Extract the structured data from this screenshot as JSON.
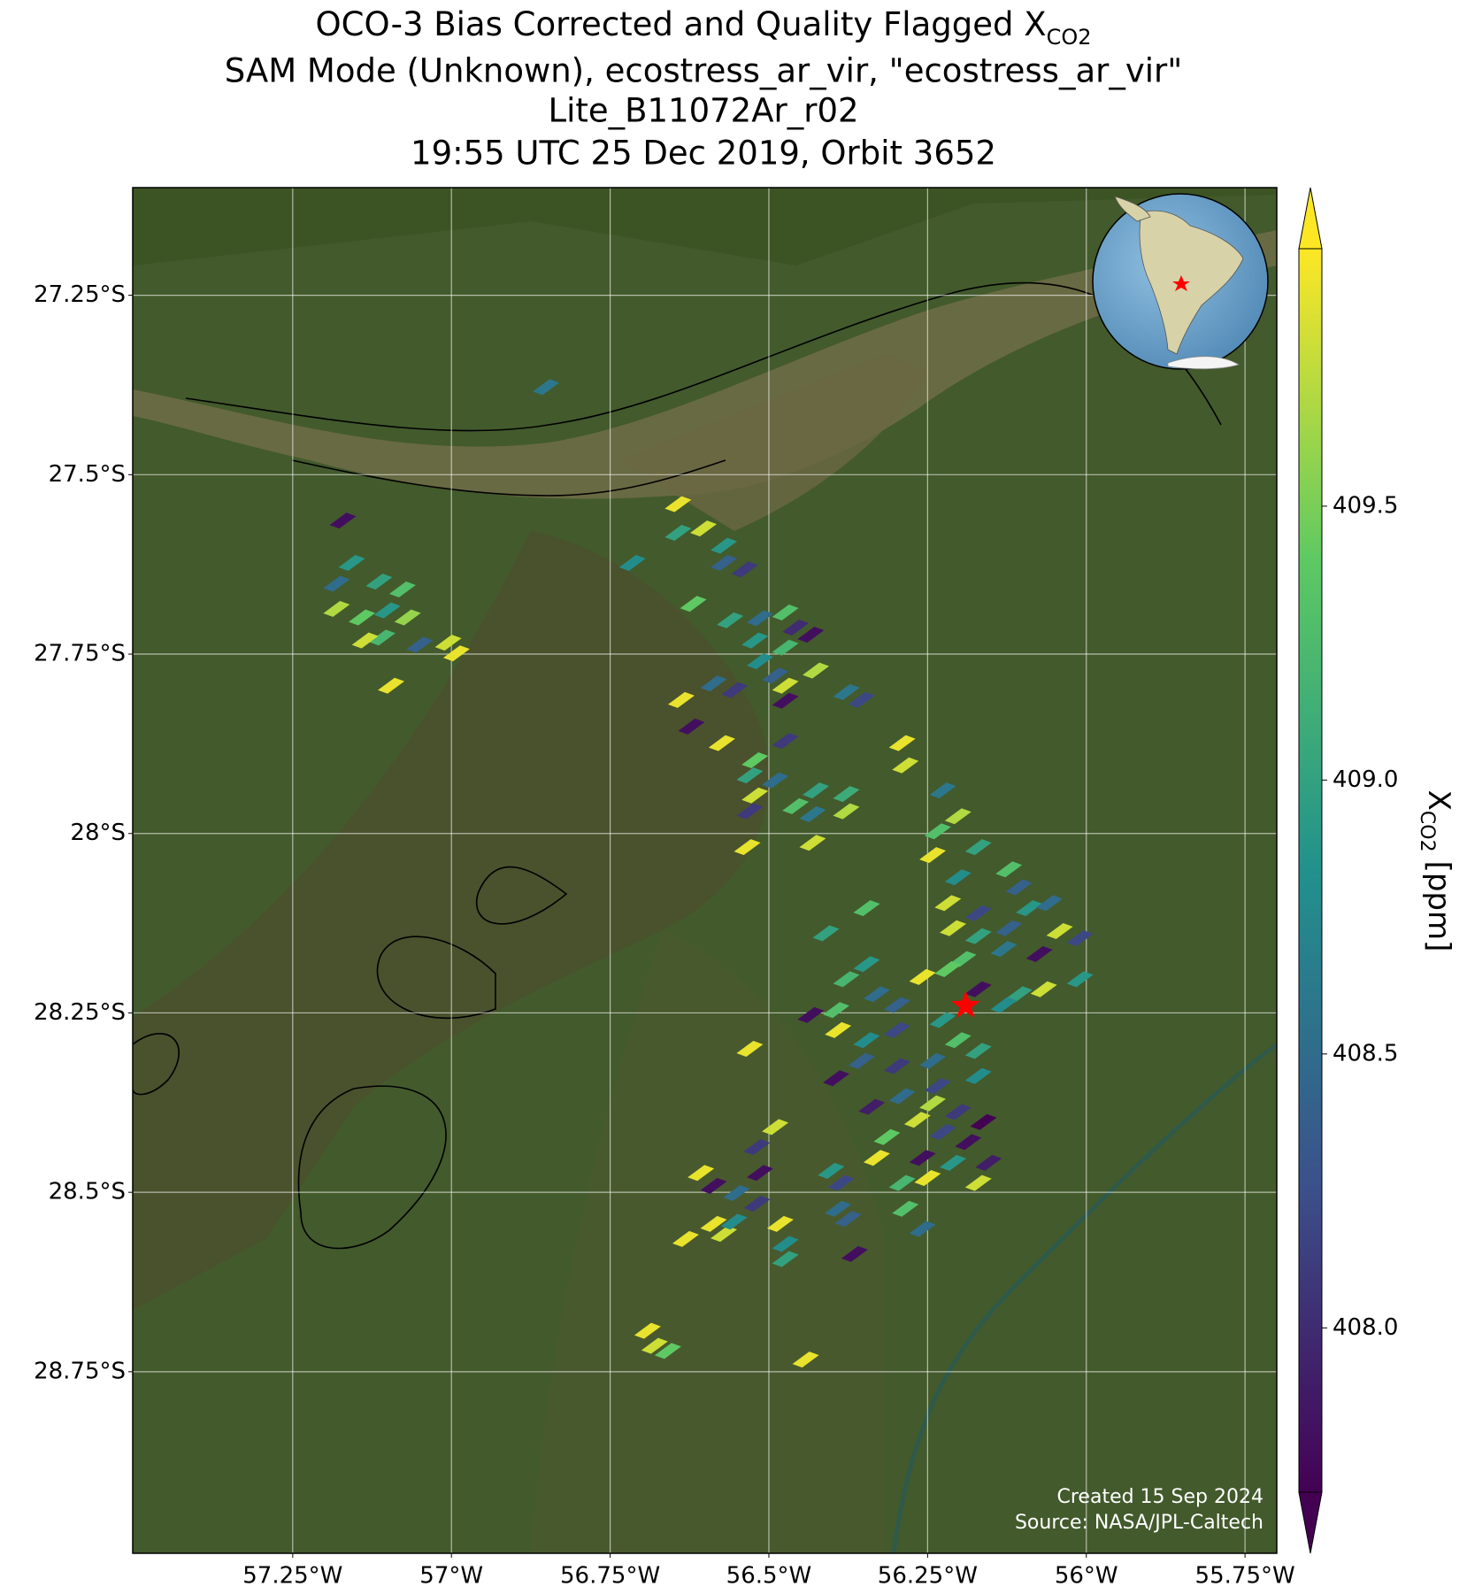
{
  "chart_data": {
    "type": "map",
    "title_lines": [
      "SAM Mode (Unknown), ecostress_ar_vir, \"ecostress_ar_vir\"",
      "Lite_B11072Ar_r02",
      "19:55 UTC 25 Dec 2019, Orbit 3652"
    ],
    "title_prefix": "OCO-3 Bias Corrected and Quality Flagged X",
    "title_subscript": "CO2",
    "colorbar_label": {
      "symbol": "X",
      "subscript": "CO2",
      "unit": "[ppm]"
    },
    "footer": [
      "Created 15 Sep 2024",
      "Source: NASA/JPL-Caltech"
    ],
    "xlim": [
      -57.502,
      -55.7
    ],
    "ylim": [
      -29.003,
      -27.1
    ],
    "xticks": [
      {
        "value": -57.25,
        "label": "57.25°W"
      },
      {
        "value": -57,
        "label": "57°W"
      },
      {
        "value": -56.75,
        "label": "56.75°W"
      },
      {
        "value": -56.5,
        "label": "56.5°W"
      },
      {
        "value": -56.25,
        "label": "56.25°W"
      },
      {
        "value": -56,
        "label": "56°W"
      },
      {
        "value": -55.75,
        "label": "55.75°W"
      }
    ],
    "yticks": [
      {
        "value": -27.25,
        "label": "27.25°S"
      },
      {
        "value": -27.5,
        "label": "27.5°S"
      },
      {
        "value": -27.75,
        "label": "27.75°S"
      },
      {
        "value": -28,
        "label": "28°S"
      },
      {
        "value": -28.25,
        "label": "28.25°S"
      },
      {
        "value": -28.5,
        "label": "28.5°S"
      },
      {
        "value": -28.75,
        "label": "28.75°S"
      }
    ],
    "grid": true,
    "colormap": "viridis",
    "clim": [
      407.7,
      409.97
    ],
    "cticks": [
      {
        "value": 408,
        "label": "408.0"
      },
      408.5,
      {
        "value": 409,
        "label": "409.0"
      },
      409.5
    ],
    "target": {
      "lon": -56.19,
      "lat": -28.24,
      "color": "#ff0000"
    },
    "soundings": {
      "lon": [
        -56.851,
        -57.171,
        -56.643,
        -56.643,
        -56.603,
        -56.571,
        -56.715,
        -56.571,
        -56.538,
        -57.157,
        -57.114,
        -57.181,
        -57.077,
        -57.181,
        -57.141,
        -57.101,
        -57.069,
        -57.109,
        -57.136,
        -57.05,
        -57.005,
        -56.992,
        -57.095,
        -56.619,
        -56.561,
        -56.514,
        -56.474,
        -56.458,
        -56.522,
        -56.434,
        -56.474,
        -56.514,
        -56.49,
        -56.426,
        -56.474,
        -56.587,
        -56.554,
        -56.638,
        -56.474,
        -56.378,
        -56.354,
        -56.622,
        -56.574,
        -56.522,
        -56.474,
        -56.53,
        -56.49,
        -56.522,
        -56.426,
        -56.378,
        -56.458,
        -56.378,
        -56.431,
        -56.53,
        -56.534,
        -56.431,
        -56.29,
        -56.285,
        -56.226,
        -56.202,
        -56.234,
        -56.242,
        -56.17,
        -56.202,
        -56.122,
        -56.106,
        -56.218,
        -56.17,
        -56.09,
        -56.058,
        -56.21,
        -56.17,
        -56.122,
        -56.042,
        -56.01,
        -56.194,
        -56.13,
        -56.074,
        -56.218,
        -56.01,
        -56.067,
        -56.106,
        -56.17,
        -56.13,
        -56.346,
        -56.41,
        -56.346,
        -56.378,
        -56.33,
        -56.258,
        -56.298,
        -56.394,
        -56.434,
        -56.391,
        -56.346,
        -56.298,
        -56.226,
        -56.202,
        -56.242,
        -56.17,
        -56.354,
        -56.298,
        -56.234,
        -56.17,
        -56.53,
        -56.394,
        -56.338,
        -56.29,
        -56.242,
        -56.202,
        -56.162,
        -56.266,
        -56.314,
        -56.226,
        -56.186,
        -56.49,
        -56.519,
        -56.33,
        -56.258,
        -56.21,
        -56.154,
        -56.29,
        -56.25,
        -56.17,
        -56.607,
        -56.587,
        -56.514,
        -56.402,
        -56.386,
        -56.551,
        -56.519,
        -56.391,
        -56.285,
        -56.587,
        -56.571,
        -56.482,
        -56.555,
        -56.375,
        -56.258,
        -56.631,
        -56.474,
        -56.474,
        -56.365,
        -56.691,
        -56.68,
        -56.659,
        -56.442
      ],
      "lat": [
        -27.378,
        -27.564,
        -27.541,
        -27.581,
        -27.575,
        -27.599,
        -27.623,
        -27.623,
        -27.632,
        -27.623,
        -27.649,
        -27.652,
        -27.66,
        -27.687,
        -27.699,
        -27.689,
        -27.699,
        -27.727,
        -27.731,
        -27.737,
        -27.734,
        -27.749,
        -27.794,
        -27.68,
        -27.703,
        -27.7,
        -27.692,
        -27.713,
        -27.731,
        -27.723,
        -27.741,
        -27.76,
        -27.78,
        -27.773,
        -27.794,
        -27.791,
        -27.8,
        -27.814,
        -27.815,
        -27.803,
        -27.814,
        -27.851,
        -27.874,
        -27.898,
        -27.871,
        -27.919,
        -27.926,
        -27.947,
        -27.94,
        -27.945,
        -27.962,
        -27.969,
        -27.973,
        -27.969,
        -28.019,
        -28.013,
        -27.874,
        -27.905,
        -27.94,
        -27.976,
        -27.997,
        -28.03,
        -28.019,
        -28.061,
        -28.05,
        -28.075,
        -28.097,
        -28.111,
        -28.104,
        -28.097,
        -28.132,
        -28.143,
        -28.132,
        -28.136,
        -28.146,
        -28.175,
        -28.161,
        -28.168,
        -28.189,
        -28.203,
        -28.217,
        -28.224,
        -28.217,
        -28.239,
        -28.104,
        -28.139,
        -28.182,
        -28.203,
        -28.224,
        -28.2,
        -28.239,
        -28.246,
        -28.253,
        -28.274,
        -28.288,
        -28.274,
        -28.26,
        -28.288,
        -28.317,
        -28.303,
        -28.317,
        -28.324,
        -28.352,
        -28.338,
        -28.3,
        -28.341,
        -28.381,
        -28.366,
        -28.376,
        -28.388,
        -28.402,
        -28.399,
        -28.423,
        -28.416,
        -28.43,
        -28.409,
        -28.437,
        -28.452,
        -28.452,
        -28.459,
        -28.459,
        -28.487,
        -28.48,
        -28.487,
        -28.473,
        -28.491,
        -28.473,
        -28.47,
        -28.487,
        -28.501,
        -28.516,
        -28.523,
        -28.523,
        -28.544,
        -28.558,
        -28.544,
        -28.541,
        -28.537,
        -28.551,
        -28.565,
        -28.572,
        -28.593,
        -28.586,
        -28.693,
        -28.714,
        -28.721,
        -28.733
      ],
      "xco2": [
        408.6,
        407.8,
        409.9,
        409.0,
        409.8,
        408.9,
        408.8,
        408.4,
        408.1,
        408.9,
        409.0,
        408.5,
        409.3,
        409.7,
        409.4,
        408.9,
        409.6,
        409.2,
        409.8,
        408.4,
        409.8,
        409.9,
        409.9,
        409.4,
        409.0,
        408.5,
        409.3,
        408.0,
        408.9,
        407.8,
        409.2,
        408.8,
        408.4,
        409.7,
        409.8,
        408.5,
        408.1,
        409.9,
        407.8,
        408.6,
        408.2,
        407.8,
        409.9,
        409.4,
        408.1,
        409.0,
        408.5,
        409.8,
        409.0,
        409.1,
        409.3,
        409.7,
        408.6,
        408.1,
        409.9,
        409.8,
        409.9,
        409.8,
        408.6,
        409.7,
        409.3,
        409.9,
        409.0,
        408.8,
        409.3,
        408.4,
        409.8,
        408.2,
        408.9,
        408.5,
        409.8,
        409.0,
        408.4,
        409.8,
        408.2,
        409.3,
        408.6,
        407.8,
        409.4,
        408.9,
        409.8,
        409.0,
        407.8,
        408.8,
        409.3,
        409.0,
        408.9,
        409.2,
        408.5,
        409.9,
        408.4,
        409.3,
        407.8,
        409.9,
        408.8,
        408.2,
        408.9,
        409.3,
        408.5,
        409.0,
        408.4,
        408.1,
        408.2,
        408.8,
        409.9,
        407.8,
        407.9,
        408.5,
        409.7,
        408.1,
        407.7,
        409.8,
        409.4,
        408.2,
        407.8,
        409.8,
        408.1,
        409.9,
        407.8,
        408.9,
        407.9,
        409.2,
        409.9,
        409.8,
        409.9,
        407.8,
        407.8,
        408.9,
        408.2,
        408.5,
        408.1,
        408.5,
        409.3,
        409.9,
        409.8,
        409.9,
        408.8,
        408.4,
        408.5,
        409.9,
        408.8,
        409.0,
        407.8,
        409.9,
        409.8,
        409.4,
        409.9
      ]
    }
  }
}
